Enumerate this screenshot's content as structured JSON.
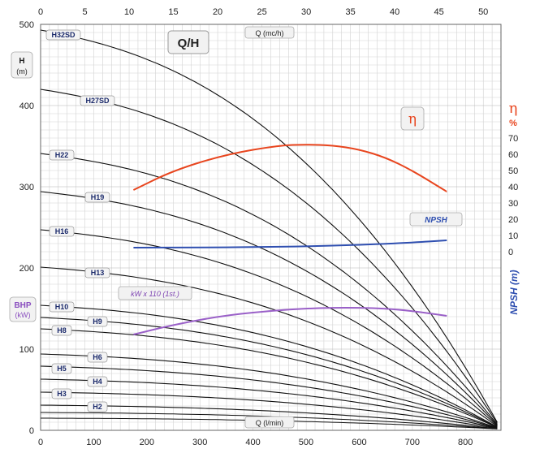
{
  "chart_data": {
    "type": "line",
    "title": "Q/H",
    "x_top_label": "Q (mc/h)",
    "x_bottom_label": "Q (l/min)",
    "left_axis": {
      "label_line1": "H",
      "label_line2": "(m)",
      "range": [
        0,
        500
      ],
      "ticks": [
        0,
        100,
        200,
        300,
        400,
        500
      ]
    },
    "bhp_axis": {
      "label_line1": "BHP",
      "label_line2": "(kW)"
    },
    "top_axis": {
      "range": [
        0,
        52
      ],
      "ticks": [
        0,
        5,
        10,
        15,
        20,
        25,
        30,
        35,
        40,
        45,
        50
      ]
    },
    "bottom_axis": {
      "range": [
        0,
        867
      ],
      "ticks": [
        0,
        100,
        200,
        300,
        400,
        500,
        600,
        700,
        800
      ]
    },
    "eta_axis": {
      "symbol": "η",
      "unit": "%",
      "ticks": [
        0,
        10,
        20,
        30,
        40,
        50,
        60,
        70
      ],
      "range": [
        0,
        70
      ]
    },
    "npsh_axis": {
      "label": "NPSH (m)"
    },
    "grid": true,
    "head_curves": [
      {
        "name": "H32SD",
        "shutoff": 493,
        "end_q": 867
      },
      {
        "name": "H27SD",
        "shutoff": 420,
        "end_q": 867
      },
      {
        "name": "H22",
        "shutoff": 341,
        "end_q": 867
      },
      {
        "name": "H19",
        "shutoff": 294,
        "end_q": 867
      },
      {
        "name": "H16",
        "shutoff": 247,
        "end_q": 867
      },
      {
        "name": "H13",
        "shutoff": 201,
        "end_q": 867
      },
      {
        "name": "H10",
        "shutoff": 154,
        "end_q": 867
      },
      {
        "name": "H9",
        "shutoff": 139,
        "end_q": 867
      },
      {
        "name": "H8",
        "shutoff": 125,
        "end_q": 867
      },
      {
        "name": "H6",
        "shutoff": 94,
        "end_q": 867
      },
      {
        "name": "H5",
        "shutoff": 79,
        "end_q": 867
      },
      {
        "name": "H4",
        "shutoff": 63,
        "end_q": 867
      },
      {
        "name": "H3",
        "shutoff": 47,
        "end_q": 867
      },
      {
        "name": "H2",
        "shutoff": 31,
        "end_q": 867
      }
    ],
    "extra_curves": [
      {
        "name": "",
        "q": [
          0,
          50,
          100,
          150,
          200,
          250,
          300,
          350,
          400,
          450,
          500,
          550,
          600,
          650,
          700,
          750,
          800,
          867
        ]
      },
      {
        "name": "",
        "q": [
          0,
          100,
          200,
          300,
          400,
          500,
          600,
          700,
          800,
          867
        ]
      }
    ],
    "efficiency": {
      "label": "η",
      "color": "#e8451e",
      "q": [
        175,
        250,
        350,
        450,
        500,
        550,
        600,
        650,
        700,
        765
      ],
      "eta": [
        38,
        50,
        60,
        65.5,
        66,
        65.5,
        63,
        58,
        50,
        37
      ]
    },
    "npsh": {
      "label": "NPSH",
      "color": "#2f4fb0",
      "q": [
        175,
        300,
        400,
        500,
        600,
        700,
        765
      ],
      "npsh": [
        0.5,
        0.6,
        0.8,
        1.3,
        2.2,
        3.6,
        5.0
      ]
    },
    "power": {
      "label": "kW x 110 (1st.)",
      "color": "#9a60c8",
      "q": [
        175,
        250,
        350,
        450,
        500,
        550,
        600,
        650,
        700,
        765
      ],
      "kw": [
        118,
        130,
        142,
        148,
        150,
        151,
        151,
        150,
        147,
        141
      ]
    }
  }
}
